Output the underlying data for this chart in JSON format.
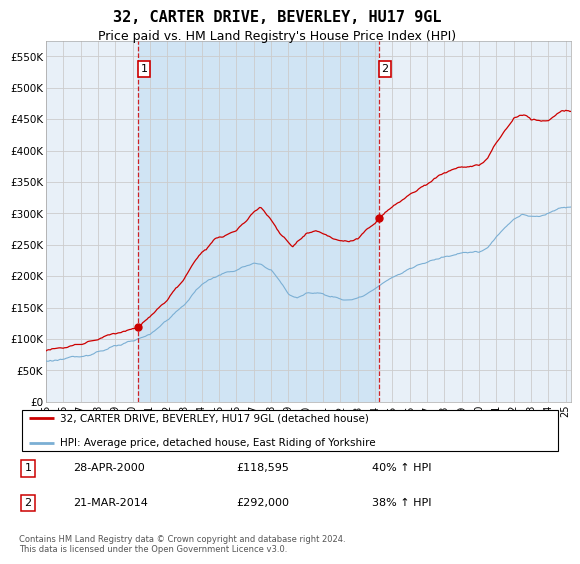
{
  "title": "32, CARTER DRIVE, BEVERLEY, HU17 9GL",
  "subtitle": "Price paid vs. HM Land Registry's House Price Index (HPI)",
  "title_fontsize": 11,
  "subtitle_fontsize": 9,
  "ylabel_ticks": [
    "£0",
    "£50K",
    "£100K",
    "£150K",
    "£200K",
    "£250K",
    "£300K",
    "£350K",
    "£400K",
    "£450K",
    "£500K",
    "£550K"
  ],
  "ytick_values": [
    0,
    50000,
    100000,
    150000,
    200000,
    250000,
    300000,
    350000,
    400000,
    450000,
    500000,
    550000
  ],
  "ylim": [
    0,
    575000
  ],
  "red_line_color": "#cc0000",
  "blue_line_color": "#7bafd4",
  "marker_color": "#cc0000",
  "vline_color": "#cc0000",
  "grid_color": "#cccccc",
  "background_color": "#ffffff",
  "plot_bg_color": "#e8f0f8",
  "shade_color": "#d0e4f4",
  "sale1": {
    "date_num": 2000.32,
    "price": 118595,
    "label": "1",
    "date_str": "28-APR-2000",
    "price_str": "£118,595",
    "hpi_str": "40% ↑ HPI"
  },
  "sale2": {
    "date_num": 2014.22,
    "price": 292000,
    "label": "2",
    "date_str": "21-MAR-2014",
    "price_str": "£292,000",
    "hpi_str": "38% ↑ HPI"
  },
  "legend_line1": "32, CARTER DRIVE, BEVERLEY, HU17 9GL (detached house)",
  "legend_line2": "HPI: Average price, detached house, East Riding of Yorkshire",
  "footer": "Contains HM Land Registry data © Crown copyright and database right 2024.\nThis data is licensed under the Open Government Licence v3.0."
}
